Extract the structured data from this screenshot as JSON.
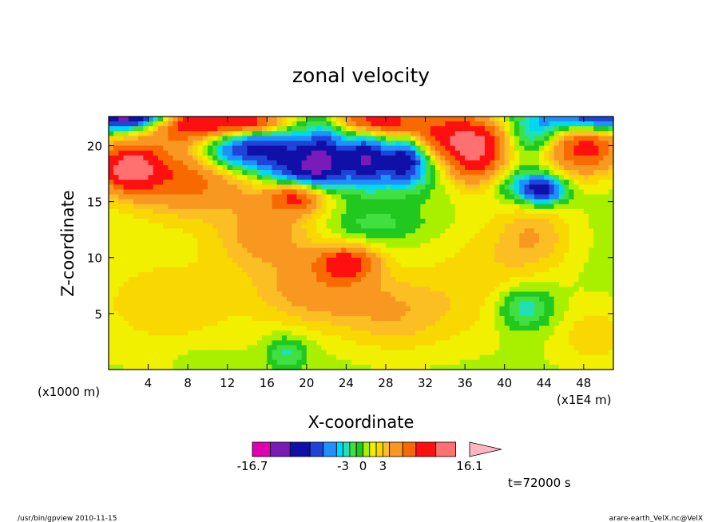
{
  "chart_data": {
    "type": "heatmap",
    "title": "zonal velocity",
    "xlabel": "X-coordinate",
    "ylabel": "Z-coordinate",
    "x_unit_left": "(x1000 m)",
    "x_unit_right": "(x1E4 m)",
    "x_ticks": [
      "4",
      "8",
      "12",
      "16",
      "20",
      "24",
      "28",
      "32",
      "36",
      "40",
      "44",
      "48"
    ],
    "y_ticks": [
      "5",
      "10",
      "15",
      "20"
    ],
    "xlim": [
      0,
      51
    ],
    "ylim": [
      0,
      22.6
    ],
    "colorbar": {
      "labels": [
        "-16.7",
        "-3",
        "0",
        "3",
        "16.1"
      ],
      "levels": [
        -16.7,
        -14,
        -11,
        -8,
        -6,
        -4,
        -3,
        -2,
        -1,
        0,
        1,
        2,
        3,
        4,
        6,
        8,
        11,
        14,
        16.1
      ],
      "colors": [
        "#e000b0",
        "#7a1ab8",
        "#1010a8",
        "#1e44d8",
        "#1e90ff",
        "#00d8f0",
        "#20e0b8",
        "#40e040",
        "#20c820",
        "#a8f000",
        "#f0f000",
        "#f8d800",
        "#fbbf24",
        "#f89820",
        "#f86a00",
        "#ff1010",
        "#ff7070",
        "#ffb6c1"
      ]
    },
    "features": [
      {
        "x": 8,
        "z": 17.5,
        "rx": 7,
        "rz": 3.5,
        "v": 7
      },
      {
        "x": 2,
        "z": 18,
        "rx": 3,
        "rz": 2,
        "v": 10
      },
      {
        "x": 9,
        "z": 22,
        "rx": 5,
        "rz": 1.5,
        "v": 10
      },
      {
        "x": 15,
        "z": 22,
        "rx": 3,
        "rz": 1,
        "v": 8
      },
      {
        "x": 2,
        "z": 22.6,
        "rx": 4,
        "rz": 1.2,
        "v": -14
      },
      {
        "x": 49,
        "z": 22.6,
        "rx": 5,
        "rz": 1.5,
        "v": -11
      },
      {
        "x": 13,
        "z": 19.5,
        "rx": 4.5,
        "rz": 2,
        "v": -9
      },
      {
        "x": 17,
        "z": 20,
        "rx": 4,
        "rz": 2,
        "v": -5
      },
      {
        "x": 18,
        "z": 17.5,
        "rx": 3,
        "rz": 1.5,
        "v": -4
      },
      {
        "x": 21,
        "z": 18,
        "rx": 3,
        "rz": 2,
        "v": -9
      },
      {
        "x": 22,
        "z": 20,
        "rx": 2,
        "rz": 2.5,
        "v": -5
      },
      {
        "x": 26,
        "z": 19,
        "rx": 2,
        "rz": 2,
        "v": -9
      },
      {
        "x": 30,
        "z": 19,
        "rx": 2,
        "rz": 2,
        "v": -9
      },
      {
        "x": 28,
        "z": 18,
        "rx": 5,
        "rz": 2.5,
        "v": -4
      },
      {
        "x": 34,
        "z": 21,
        "rx": 6,
        "rz": 2,
        "v": 8
      },
      {
        "x": 27,
        "z": 22.3,
        "rx": 4,
        "rz": 1.2,
        "v": 8
      },
      {
        "x": 37,
        "z": 19,
        "rx": 3,
        "rz": 2.5,
        "v": 9
      },
      {
        "x": 43,
        "z": 21,
        "rx": 3,
        "rz": 2,
        "v": -5
      },
      {
        "x": 48,
        "z": 20,
        "rx": 4,
        "rz": 2.5,
        "v": 9
      },
      {
        "x": 42,
        "z": 16.5,
        "rx": 3,
        "rz": 1.5,
        "v": -4
      },
      {
        "x": 44,
        "z": 16,
        "rx": 2,
        "rz": 1.2,
        "v": -9
      },
      {
        "x": 19,
        "z": 15.5,
        "rx": 3,
        "rz": 1.5,
        "v": 8
      },
      {
        "x": 16,
        "z": 12,
        "rx": 5,
        "rz": 3,
        "v": 4
      },
      {
        "x": 21,
        "z": 7,
        "rx": 6,
        "rz": 3,
        "v": 4
      },
      {
        "x": 24,
        "z": 9.5,
        "rx": 3,
        "rz": 1.5,
        "v": 8
      },
      {
        "x": 29,
        "z": 5,
        "rx": 6,
        "rz": 3.5,
        "v": 3
      },
      {
        "x": 6,
        "z": 6,
        "rx": 9,
        "rz": 5,
        "v": 2
      },
      {
        "x": 38,
        "z": 8,
        "rx": 6,
        "rz": 5,
        "v": 2
      },
      {
        "x": 43,
        "z": 12,
        "rx": 4,
        "rz": 3,
        "v": 3
      },
      {
        "x": 42,
        "z": 5.5,
        "rx": 3,
        "rz": 2,
        "v": -4
      },
      {
        "x": 18,
        "z": 1.5,
        "rx": 2,
        "rz": 1.5,
        "v": -3
      },
      {
        "x": 49,
        "z": 3,
        "rx": 4,
        "rz": 3,
        "v": 2
      },
      {
        "x": 27,
        "z": 13,
        "rx": 5,
        "rz": 1.5,
        "v": -2
      },
      {
        "x": 10,
        "z": 1,
        "rx": 3,
        "rz": 1,
        "v": -1
      }
    ]
  },
  "annotations": {
    "time": "t=72000 s",
    "footer_left": "/usr/bin/gpview  2010-11-15",
    "footer_right": "arare-earth_VelX.nc@VelX"
  }
}
